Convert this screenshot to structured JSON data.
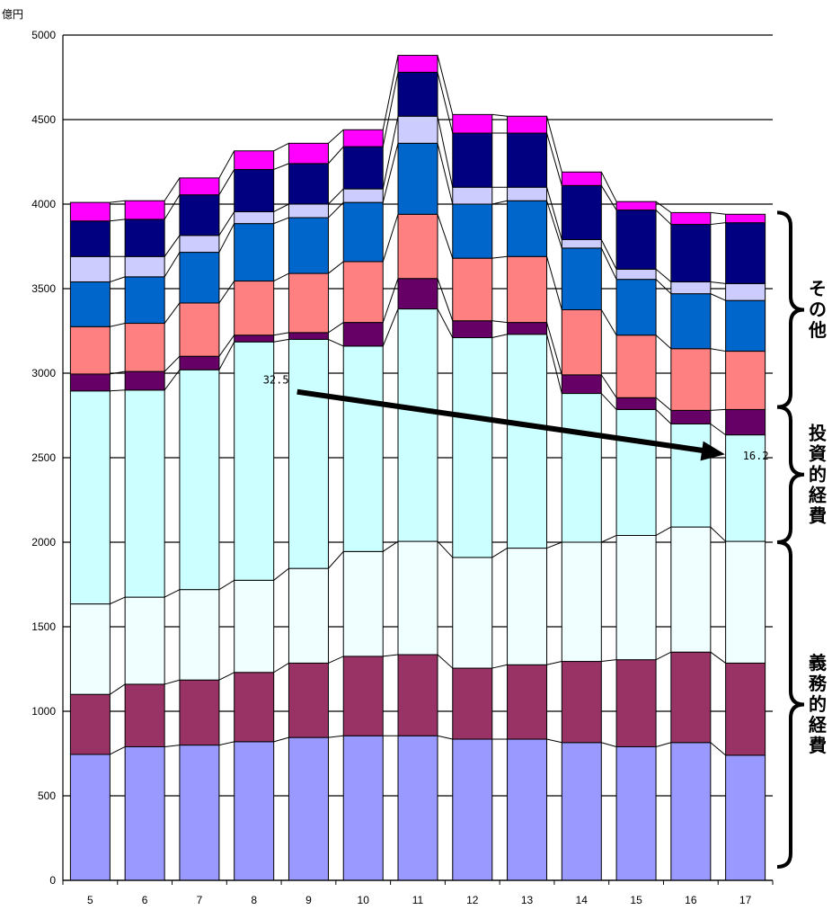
{
  "chart_data": {
    "type": "bar",
    "stacked": true,
    "connector_lines": true,
    "unit_label": "億円",
    "categories": [
      "5",
      "6",
      "7",
      "8",
      "9",
      "10",
      "11",
      "12",
      "13",
      "14",
      "15",
      "16",
      "17"
    ],
    "ylim": [
      0,
      5000
    ],
    "yticks": [
      0,
      500,
      1000,
      1500,
      2000,
      2500,
      3000,
      3500,
      4000,
      4500,
      5000
    ],
    "grid": true,
    "series": [
      {
        "color": "#9999FF",
        "values": [
          745,
          790,
          800,
          820,
          845,
          855,
          855,
          835,
          835,
          815,
          790,
          815,
          740
        ]
      },
      {
        "color": "#993366",
        "values": [
          355,
          370,
          385,
          410,
          440,
          470,
          480,
          420,
          440,
          480,
          515,
          535,
          545
        ]
      },
      {
        "color": "#F0FFFF",
        "values": [
          535,
          515,
          535,
          545,
          560,
          620,
          670,
          655,
          690,
          705,
          735,
          740,
          720
        ]
      },
      {
        "color": "#CCFFFF",
        "values": [
          1260,
          1225,
          1300,
          1410,
          1355,
          1215,
          1375,
          1300,
          1265,
          880,
          745,
          610,
          630
        ]
      },
      {
        "color": "#660066",
        "values": [
          100,
          110,
          80,
          40,
          40,
          140,
          180,
          100,
          70,
          110,
          70,
          80,
          150
        ]
      },
      {
        "color": "#FF8080",
        "values": [
          280,
          285,
          315,
          320,
          350,
          360,
          380,
          370,
          390,
          385,
          370,
          365,
          345
        ]
      },
      {
        "color": "#0066CC",
        "values": [
          265,
          275,
          300,
          340,
          330,
          350,
          420,
          320,
          330,
          365,
          330,
          325,
          300
        ]
      },
      {
        "color": "#CCCCFF",
        "values": [
          150,
          120,
          100,
          70,
          80,
          80,
          160,
          100,
          80,
          50,
          60,
          70,
          100
        ]
      },
      {
        "color": "#000080",
        "values": [
          210,
          220,
          240,
          250,
          240,
          250,
          260,
          320,
          320,
          320,
          350,
          340,
          360
        ]
      },
      {
        "color": "#FF00FF",
        "values": [
          110,
          110,
          100,
          110,
          120,
          100,
          100,
          110,
          100,
          80,
          50,
          70,
          50
        ]
      }
    ],
    "annotations": [
      {
        "text": "32.5"
      },
      {
        "text": "16.2"
      }
    ],
    "brackets": [
      {
        "label": "その他",
        "from": 2800,
        "to": 3950
      },
      {
        "label": "投資的経費",
        "from": 2000,
        "to": 2800
      },
      {
        "label": "義務的経費",
        "from": 80,
        "to": 2000
      }
    ]
  }
}
